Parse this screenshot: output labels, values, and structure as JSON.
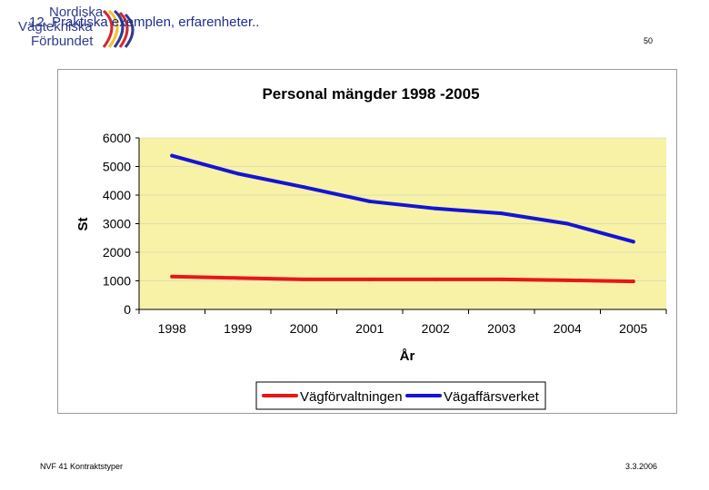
{
  "logo": {
    "lines": [
      "Nordiska",
      "Vägtekniska",
      "Förbundet"
    ],
    "stripe_colors": [
      "#d4282f",
      "#f2c230",
      "#2f3d8f",
      "#d4282f",
      "#2f3d8f"
    ]
  },
  "slide": {
    "title": "12. Praktiska exemplen, erfarenheter..",
    "page_number": "50",
    "footer_left": "NVF 41 Kontraktstyper",
    "footer_right": "3.3.2006"
  },
  "colors": {
    "plot_bg": "#f7f2a6",
    "series_red": "#e8161b",
    "series_blue": "#1414d6",
    "grid": "#c8c8c8"
  },
  "chart_data": {
    "type": "line",
    "title": "Personal mängder 1998 -2005",
    "xlabel": "År",
    "ylabel": "St",
    "categories": [
      "1998",
      "1999",
      "2000",
      "2001",
      "2002",
      "2003",
      "2004",
      "2005"
    ],
    "ylim": [
      0,
      6000
    ],
    "yticks": [
      0,
      1000,
      2000,
      3000,
      4000,
      5000,
      6000
    ],
    "grid": true,
    "legend_position": "bottom",
    "series": [
      {
        "name": "Vägförvaltningen",
        "color": "#e8161b",
        "values": [
          1150,
          1100,
          1050,
          1050,
          1050,
          1050,
          1020,
          980
        ]
      },
      {
        "name": "Vägaffärsverket",
        "color": "#1414d6",
        "values": [
          5380,
          4750,
          4280,
          3780,
          3530,
          3360,
          3000,
          2370
        ]
      }
    ]
  }
}
